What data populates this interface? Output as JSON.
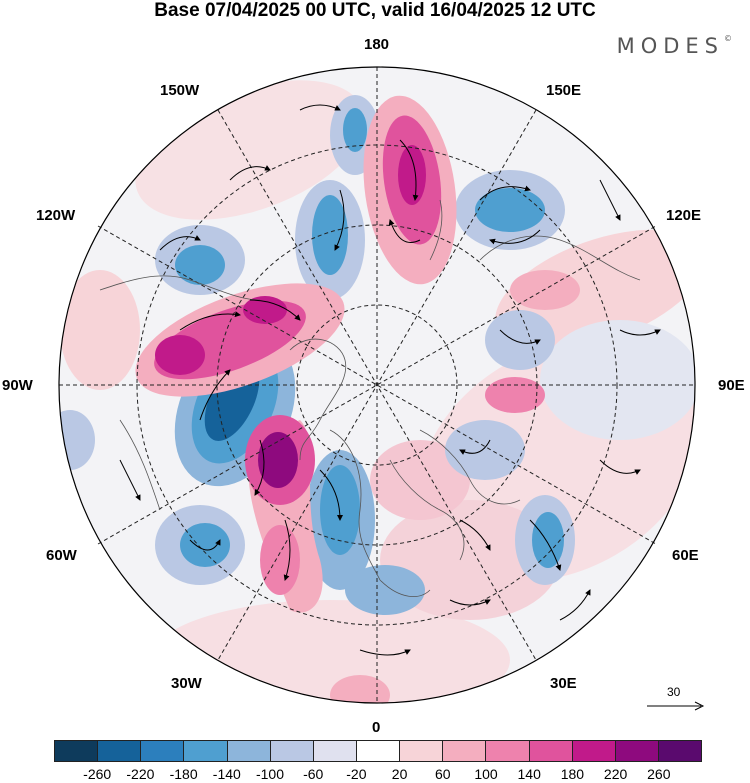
{
  "header": {
    "title": "Base 07/04/2025 00 UTC, valid 16/04/2025 12 UTC",
    "brand": "MODES",
    "brand_mark": "©"
  },
  "map": {
    "projection": "north-polar-stereographic",
    "longitude_labels": [
      "180",
      "150E",
      "120E",
      "90E",
      "60E",
      "30E",
      "0",
      "30W",
      "60W",
      "90W",
      "120W",
      "150W"
    ],
    "vector_scale_label": "30"
  },
  "colorbar": {
    "ticks": [
      "-260",
      "-220",
      "-180",
      "-140",
      "-100",
      "-60",
      "-20",
      "20",
      "60",
      "100",
      "140",
      "180",
      "220",
      "260"
    ],
    "colors": [
      "#0e3b5c",
      "#15629a",
      "#2c7fbd",
      "#4f9fd0",
      "#8db5db",
      "#bac8e4",
      "#e0e1ef",
      "#ffffff",
      "#f7d4d8",
      "#f4aebf",
      "#ee82ad",
      "#e0539d",
      "#c11a8a",
      "#8e0a7e",
      "#5a0a6e"
    ]
  },
  "colors": {
    "land_outline": "#555555",
    "grid": "#222222",
    "blue": "#3b82bf",
    "pink": "#e0539d"
  }
}
